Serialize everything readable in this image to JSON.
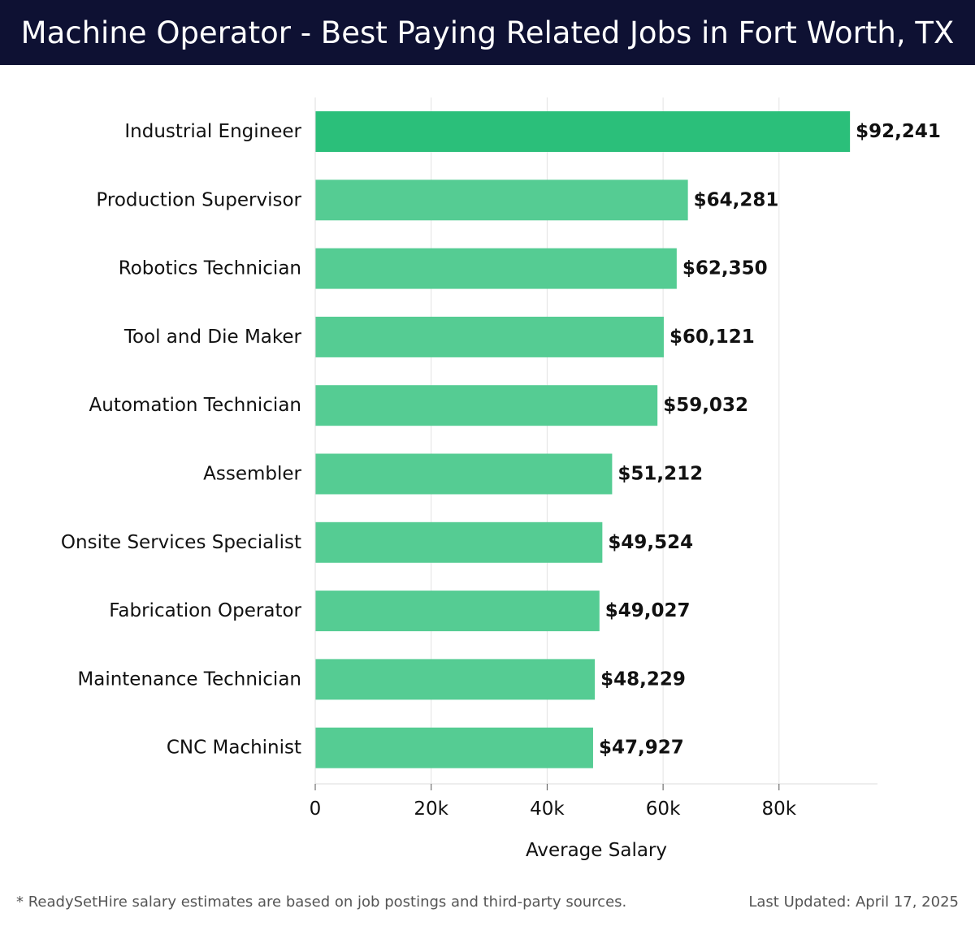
{
  "header": {
    "title": "Machine Operator - Best Paying Related Jobs in Fort Worth, TX"
  },
  "footer": {
    "note": "* ReadySetHire salary estimates are based on job postings and third-party sources.",
    "updated": "Last Updated: April 17, 2025"
  },
  "colors": {
    "header_bg": "#0e1133",
    "top_bar": "#2bbf7a",
    "bar": "#55cc93"
  },
  "chart_data": {
    "type": "bar",
    "orientation": "horizontal",
    "categories": [
      "Industrial Engineer",
      "Production Supervisor",
      "Robotics Technician",
      "Tool and Die Maker",
      "Automation Technician",
      "Assembler",
      "Onsite Services Specialist",
      "Fabrication Operator",
      "Maintenance Technician",
      "CNC Machinist"
    ],
    "values": [
      92241,
      64281,
      62350,
      60121,
      59032,
      51212,
      49524,
      49027,
      48229,
      47927
    ],
    "value_labels": [
      "$92,241",
      "$64,281",
      "$62,350",
      "$60,121",
      "$59,032",
      "$51,212",
      "$49,524",
      "$49,027",
      "$48,229",
      "$47,927"
    ],
    "xlabel": "Average Salary",
    "ylabel": "",
    "xlim": [
      0,
      97000
    ],
    "xticks": [
      0,
      20000,
      40000,
      60000,
      80000
    ],
    "xtick_labels": [
      "0",
      "20k",
      "40k",
      "60k",
      "80k"
    ],
    "grid": true,
    "legend": "none"
  }
}
